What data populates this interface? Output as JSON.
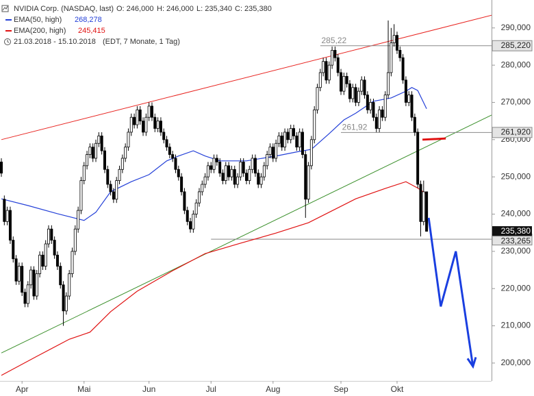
{
  "chart_data": {
    "type": "candlestick",
    "title": "NVIDIA Corp. (NASDAQ, last)",
    "ohlc_header": [
      "O: 246,000",
      "H: 246,000",
      "L: 235,340",
      "C: 235,380"
    ],
    "period": "21.03.2018 - 15.10.2018",
    "period_note": "(EDT, 7 Monate, 1 Tag)",
    "categories": [
      null,
      null,
      null,
      null,
      null,
      null,
      null,
      "Apr",
      null,
      null,
      null,
      null,
      null,
      null,
      null,
      null,
      null,
      null,
      null,
      null,
      null,
      null,
      null,
      null,
      null,
      null,
      null,
      null,
      "Mai",
      null,
      null,
      null,
      null,
      null,
      null,
      null,
      null,
      null,
      null,
      null,
      null,
      null,
      null,
      null,
      null,
      null,
      null,
      null,
      null,
      null,
      "Jun",
      null,
      null,
      null,
      null,
      null,
      null,
      null,
      null,
      null,
      null,
      null,
      null,
      null,
      null,
      null,
      null,
      null,
      null,
      null,
      null,
      "Jul",
      null,
      null,
      null,
      null,
      null,
      null,
      null,
      null,
      null,
      null,
      null,
      null,
      null,
      null,
      null,
      null,
      null,
      null,
      null,
      null,
      "Aug",
      null,
      null,
      null,
      null,
      null,
      null,
      null,
      null,
      null,
      null,
      null,
      null,
      null,
      null,
      null,
      null,
      null,
      null,
      null,
      null,
      null,
      null,
      "Sep",
      null,
      null,
      null,
      null,
      null,
      null,
      null,
      null,
      null,
      null,
      null,
      null,
      null,
      null,
      null,
      null,
      null,
      null,
      "Okt",
      null,
      null,
      null,
      null,
      null,
      null,
      null,
      null,
      null,
      null
    ],
    "open": [
      254000,
      244000,
      238000,
      241000,
      233000,
      228000,
      222000,
      226000,
      219000,
      216000,
      221000,
      225000,
      218000,
      224000,
      229000,
      226000,
      232000,
      236000,
      233000,
      229000,
      226000,
      221000,
      214000,
      218000,
      224000,
      230000,
      236000,
      241000,
      249000,
      253000,
      256000,
      258000,
      255000,
      259000,
      261000,
      257000,
      252000,
      248000,
      246000,
      244000,
      249000,
      252000,
      255000,
      258000,
      262000,
      266000,
      264000,
      268000,
      265000,
      262000,
      266000,
      269000,
      266000,
      263000,
      265000,
      262000,
      260000,
      258000,
      256000,
      255000,
      252000,
      250000,
      246000,
      241000,
      238000,
      236000,
      240000,
      243000,
      246000,
      248000,
      250000,
      253000,
      252000,
      255000,
      254000,
      251000,
      249000,
      253000,
      250000,
      252000,
      248000,
      250000,
      254000,
      251000,
      249000,
      252000,
      255000,
      251000,
      248000,
      250000,
      253000,
      256000,
      258000,
      255000,
      259000,
      261000,
      258000,
      262000,
      260000,
      263000,
      261000,
      258000,
      262000,
      256000,
      244000,
      253000,
      260000,
      268000,
      274000,
      278000,
      281000,
      276000,
      280000,
      284000,
      282000,
      278000,
      273000,
      277000,
      275000,
      271000,
      274000,
      270000,
      273000,
      276000,
      272000,
      268000,
      270000,
      266000,
      263000,
      268000,
      266000,
      272000,
      278000,
      286000,
      288000,
      284000,
      282000,
      276000,
      270000,
      272000,
      266000,
      262000,
      248000,
      238000,
      246000
    ],
    "high": [
      255000,
      245000,
      242000,
      242000,
      234000,
      229000,
      227000,
      227000,
      220000,
      222000,
      226000,
      226000,
      225000,
      230000,
      230000,
      233000,
      237000,
      237000,
      234000,
      230000,
      227000,
      222000,
      219000,
      225000,
      231000,
      237000,
      242000,
      250000,
      254000,
      257000,
      259000,
      259000,
      260000,
      262000,
      262000,
      258000,
      253000,
      249000,
      247000,
      250000,
      253000,
      256000,
      259000,
      263000,
      267000,
      267000,
      269000,
      269000,
      266000,
      267000,
      270000,
      270000,
      267000,
      266000,
      266000,
      263000,
      261000,
      259000,
      257000,
      256000,
      253000,
      251000,
      247000,
      242000,
      239000,
      241000,
      244000,
      247000,
      249000,
      251000,
      254000,
      254000,
      256000,
      256000,
      255000,
      252000,
      254000,
      254000,
      253000,
      253000,
      251000,
      255000,
      255000,
      252000,
      253000,
      256000,
      256000,
      252000,
      251000,
      254000,
      257000,
      259000,
      259000,
      260000,
      262000,
      262000,
      263000,
      263000,
      264000,
      264000,
      262000,
      263000,
      263000,
      257000,
      254000,
      261000,
      269000,
      275000,
      279000,
      282000,
      282000,
      281000,
      285000,
      285000,
      283000,
      279000,
      278000,
      278000,
      276000,
      275000,
      275000,
      274000,
      277000,
      277000,
      273000,
      271000,
      271000,
      267000,
      269000,
      269000,
      273000,
      292000,
      290000,
      291000,
      289000,
      285000,
      283000,
      277000,
      273000,
      273000,
      267000,
      263000,
      249000,
      249000,
      246000
    ],
    "low": [
      250000,
      237000,
      237000,
      232000,
      227000,
      221000,
      221000,
      218000,
      215000,
      215000,
      220000,
      217000,
      217000,
      223000,
      225000,
      225000,
      231000,
      232000,
      228000,
      225000,
      220000,
      210000,
      213000,
      217000,
      223000,
      229000,
      235000,
      240000,
      248000,
      252000,
      255000,
      254000,
      254000,
      258000,
      256000,
      251000,
      247000,
      245000,
      243000,
      243000,
      248000,
      251000,
      254000,
      257000,
      261000,
      263000,
      263000,
      264000,
      261000,
      261000,
      265000,
      265000,
      262000,
      262000,
      261000,
      259000,
      257000,
      255000,
      254000,
      251000,
      249000,
      245000,
      240000,
      237000,
      235000,
      235000,
      239000,
      242000,
      245000,
      247000,
      249000,
      251000,
      251000,
      253000,
      250000,
      248000,
      248000,
      249000,
      249000,
      247000,
      247000,
      249000,
      250000,
      248000,
      248000,
      251000,
      250000,
      247000,
      247000,
      249000,
      252000,
      255000,
      254000,
      254000,
      258000,
      257000,
      257000,
      259000,
      259000,
      260000,
      257000,
      257000,
      255000,
      239000,
      243000,
      252000,
      259000,
      267000,
      273000,
      277000,
      275000,
      275000,
      279000,
      281000,
      277000,
      272000,
      272000,
      274000,
      270000,
      270000,
      269000,
      269000,
      272000,
      271000,
      267000,
      267000,
      265000,
      262000,
      262000,
      265000,
      265000,
      271000,
      277000,
      285000,
      283000,
      281000,
      275000,
      269000,
      269000,
      265000,
      261000,
      247000,
      234000,
      237000,
      235340
    ],
    "close": [
      251000,
      238000,
      241000,
      233000,
      228000,
      222000,
      226000,
      219000,
      216000,
      221000,
      225000,
      218000,
      224000,
      229000,
      226000,
      232000,
      236000,
      233000,
      229000,
      226000,
      221000,
      214000,
      218000,
      224000,
      230000,
      236000,
      241000,
      249000,
      253000,
      256000,
      258000,
      255000,
      259000,
      261000,
      257000,
      252000,
      248000,
      246000,
      244000,
      249000,
      252000,
      255000,
      258000,
      262000,
      266000,
      264000,
      268000,
      265000,
      262000,
      266000,
      269000,
      266000,
      263000,
      265000,
      262000,
      260000,
      258000,
      256000,
      255000,
      252000,
      250000,
      246000,
      241000,
      238000,
      236000,
      240000,
      243000,
      246000,
      248000,
      250000,
      253000,
      252000,
      255000,
      254000,
      251000,
      249000,
      253000,
      250000,
      252000,
      248000,
      250000,
      254000,
      251000,
      249000,
      252000,
      255000,
      251000,
      248000,
      250000,
      253000,
      256000,
      258000,
      255000,
      259000,
      261000,
      258000,
      262000,
      260000,
      263000,
      261000,
      258000,
      262000,
      256000,
      244000,
      253000,
      260000,
      268000,
      274000,
      278000,
      281000,
      276000,
      280000,
      284000,
      282000,
      278000,
      273000,
      277000,
      275000,
      271000,
      274000,
      270000,
      273000,
      276000,
      272000,
      268000,
      270000,
      266000,
      263000,
      268000,
      266000,
      272000,
      278000,
      286000,
      288000,
      284000,
      282000,
      276000,
      270000,
      272000,
      266000,
      262000,
      248000,
      238000,
      246000,
      235380
    ],
    "up_color": "#ffffff",
    "down_color": "#000000",
    "series": [
      {
        "name": "EMA(50, high)",
        "legend_value": "268,278",
        "color": "#2440d8",
        "x": [
          0,
          9,
          19,
          28,
          32,
          37,
          44,
          50,
          56,
          60,
          65,
          69,
          74,
          83,
          93,
          100,
          105,
          111,
          116,
          120,
          126,
          132,
          137,
          139,
          141,
          144
        ],
        "values": [
          244100,
          242300,
          240100,
          238300,
          240500,
          246000,
          248700,
          250600,
          254300,
          255600,
          257000,
          255600,
          254300,
          254300,
          255600,
          256700,
          257400,
          261600,
          265300,
          267100,
          270300,
          271200,
          273000,
          274000,
          273200,
          268300
        ]
      },
      {
        "name": "EMA(200, high)",
        "legend_value": "245,415",
        "color": "#e01010",
        "x": [
          0,
          12,
          23,
          30,
          37,
          46,
          58,
          69,
          81,
          93,
          104,
          111,
          120,
          130,
          137,
          141,
          144
        ],
        "values": [
          196700,
          201800,
          206400,
          208300,
          213800,
          219300,
          224800,
          229400,
          232200,
          234900,
          237700,
          240500,
          244100,
          246900,
          248700,
          247000,
          245400
        ]
      }
    ],
    "lines": [
      {
        "color": "#e8231f",
        "width": 1,
        "x": [
          0,
          166
        ],
        "values": [
          260000,
          293400
        ]
      },
      {
        "color": "#3a8f2a",
        "width": 1,
        "x": [
          0,
          166
        ],
        "values": [
          202700,
          266600
        ]
      },
      {
        "color": "#e01010",
        "width": 3,
        "x": [
          142.6,
          150.5
        ],
        "values": [
          260000,
          260300
        ]
      }
    ],
    "arrow": {
      "color": "#1a3fe0",
      "x": [
        144.7,
        148.8,
        153.9,
        159.7
      ],
      "values": [
        239000,
        215200,
        230000,
        199100
      ]
    },
    "levels": [
      {
        "value": 285220,
        "label": "285,220",
        "annotation": "285,22",
        "from": 108
      },
      {
        "value": 261920,
        "label": "261,920",
        "annotation": "261,92",
        "from": 115
      },
      {
        "value": 233265,
        "label": "233,265",
        "from": 71
      }
    ],
    "last_price": {
      "value": 235380,
      "label": "235,380"
    },
    "xlim": [
      0,
      166
    ],
    "ylim": [
      195200,
      297500
    ],
    "yticks": [
      {
        "value": 200000,
        "label": "200,000"
      },
      {
        "value": 210000,
        "label": "210,000"
      },
      {
        "value": 220000,
        "label": "220,000"
      },
      {
        "value": 230000,
        "label": "230,000"
      },
      {
        "value": 240000,
        "label": "240,000"
      },
      {
        "value": 250000,
        "label": "250,000"
      },
      {
        "value": 260000,
        "label": "260,000"
      },
      {
        "value": 270000,
        "label": "270,000"
      },
      {
        "value": 280000,
        "label": "280,000"
      },
      {
        "value": 290000,
        "label": "290,000"
      }
    ]
  }
}
